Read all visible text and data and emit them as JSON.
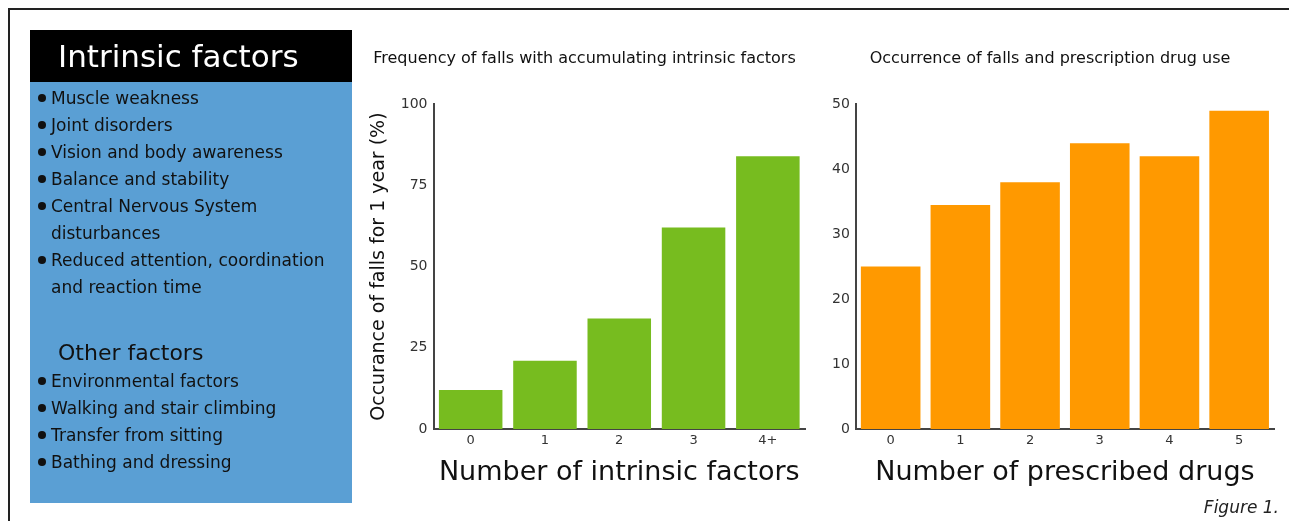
{
  "chart_data": [
    {
      "type": "other",
      "title": "Intrinsic factors",
      "annotations": [
        "Muscle weakness",
        "Joint disorders",
        "Vision and body awareness",
        "Balance and stability",
        "Central Nervous System disturbances",
        "Reduced attention, coordination and reaction time"
      ]
    },
    {
      "type": "other",
      "title": "Other factors",
      "annotations": [
        "Environmental factors",
        "Walking and stair climbing",
        "Transfer from sitting",
        "Bathing and dressing"
      ]
    },
    {
      "type": "bar",
      "title": "Frequency of falls with accumulating intrinsic factors",
      "xlabel": "Number of intrinsic factors",
      "ylabel": "Occurance of falls for 1 year (%)",
      "categories": [
        "0",
        "1",
        "2",
        "3",
        "4+"
      ],
      "values": [
        12,
        21,
        34,
        62,
        84
      ],
      "color": "#77bc1f",
      "ylim": [
        0,
        100
      ],
      "yticks": [
        0,
        25,
        50,
        75,
        100
      ],
      "grid": false
    },
    {
      "type": "bar",
      "title": "Occurrence of falls and prescription drug use",
      "xlabel": "Number of prescribed drugs",
      "categories": [
        "0",
        "1",
        "2",
        "3",
        "4",
        "5"
      ],
      "values": [
        25,
        34.5,
        38,
        44,
        42,
        49
      ],
      "color": "#ff9900",
      "ylim": [
        0,
        50
      ],
      "yticks": [
        0,
        10,
        20,
        30,
        40,
        50
      ],
      "grid": false,
      "annotations": [
        "Figure 1."
      ]
    }
  ]
}
